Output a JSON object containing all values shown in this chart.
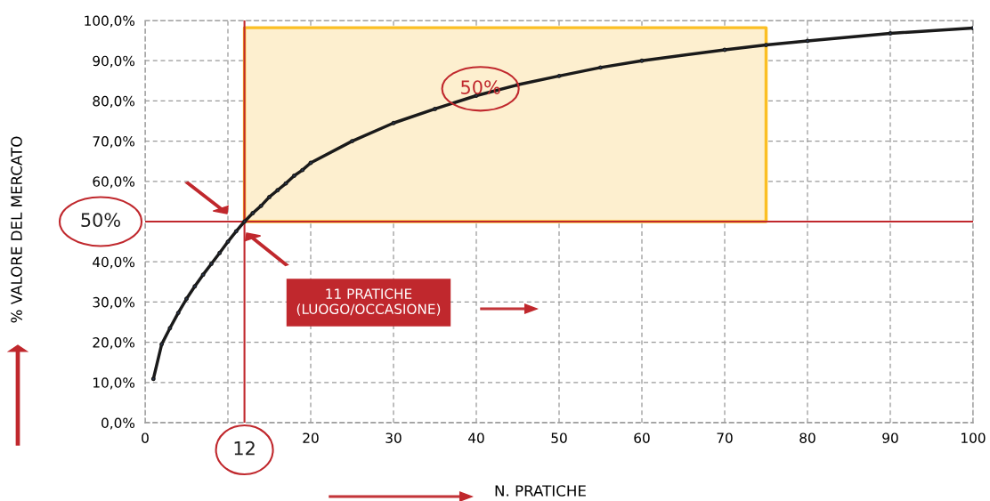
{
  "chart_data": {
    "type": "line",
    "xlabel": "N. PRATICHE",
    "ylabel": "% VALORE DEL MERCATO",
    "x": [
      1,
      2,
      3,
      4,
      5,
      6,
      7,
      8,
      9,
      10,
      11,
      12,
      13,
      14,
      15,
      16,
      17,
      18,
      19,
      20,
      25,
      30,
      35,
      40,
      45,
      50,
      55,
      60,
      70,
      75,
      80,
      90,
      100
    ],
    "series": [
      {
        "color": "#1a1a1a",
        "values": [
          10.9,
          19.5,
          23.5,
          27.3,
          30.8,
          33.9,
          36.8,
          39.5,
          42.2,
          45.0,
          47.6,
          50.0,
          52.1,
          53.9,
          56.1,
          57.8,
          59.5,
          61.4,
          62.8,
          64.6,
          70.0,
          74.5,
          78.0,
          81.3,
          84.0,
          86.2,
          88.3,
          90.0,
          92.7,
          93.9,
          94.9,
          96.8,
          98.1
        ]
      }
    ],
    "xlim": [
      0,
      100
    ],
    "ylim": [
      0,
      100
    ],
    "xticks": [
      0,
      {
        "value": 10,
        "label": null
      },
      20,
      30,
      40,
      50,
      60,
      70,
      80,
      90,
      100
    ],
    "yticks": [
      {
        "value": 0,
        "label": "0,0%"
      },
      {
        "value": 10,
        "label": "10,0%"
      },
      {
        "value": 20,
        "label": "20,0%"
      },
      {
        "value": 30,
        "label": "30,0%"
      },
      {
        "value": 40,
        "label": "40,0%"
      },
      {
        "value": 50,
        "label": null
      },
      {
        "value": 60,
        "label": "60,0%"
      },
      {
        "value": 70,
        "label": "70,0%"
      },
      {
        "value": 80,
        "label": "80,0%"
      },
      {
        "value": 90,
        "label": "90,0%"
      },
      {
        "value": 100,
        "label": "100,0%"
      }
    ],
    "ref_lines": [
      {
        "axis": "x",
        "value": 12,
        "label": "12",
        "color": "#c0282d"
      },
      {
        "axis": "y",
        "value": 50,
        "label": "50%",
        "color": "#c0282d"
      }
    ],
    "bands": [
      {
        "axis": "x",
        "from": 12,
        "to": 75,
        "label": "50%",
        "color": "#fdefcf"
      }
    ],
    "annotations": [
      "11 PRATICHE\n(LUOGO/OCCASIONE)"
    ],
    "grid": true,
    "marker": "circle",
    "line_style": "solid"
  }
}
